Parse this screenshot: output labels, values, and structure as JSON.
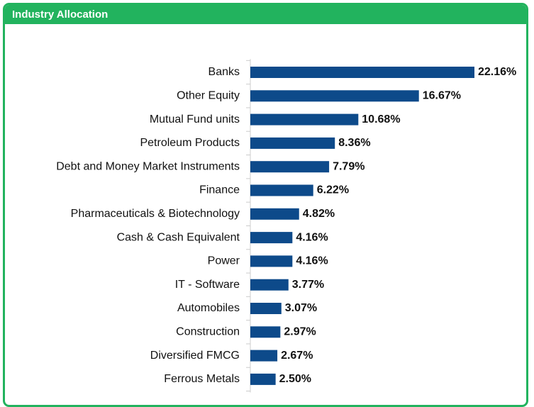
{
  "chart_data": {
    "type": "bar",
    "orientation": "horizontal",
    "title": "Industry Allocation",
    "categories": [
      "Banks",
      "Other Equity",
      "Mutual Fund units",
      "Petroleum Products",
      "Debt and Money Market Instruments",
      "Finance",
      "Pharmaceuticals & Biotechnology",
      "Cash & Cash Equivalent",
      "Power",
      "IT - Software",
      "Automobiles",
      "Construction",
      "Diversified FMCG",
      "Ferrous Metals"
    ],
    "values": [
      22.16,
      16.67,
      10.68,
      8.36,
      7.79,
      6.22,
      4.82,
      4.16,
      4.16,
      3.77,
      3.07,
      2.97,
      2.67,
      2.5
    ],
    "value_labels": [
      "22.16%",
      "16.67%",
      "10.68%",
      "8.36%",
      "7.79%",
      "6.22%",
      "4.82%",
      "4.16%",
      "4.16%",
      "3.77%",
      "3.07%",
      "2.97%",
      "2.67%",
      "2.50%"
    ],
    "color": "#0d4a8a"
  }
}
